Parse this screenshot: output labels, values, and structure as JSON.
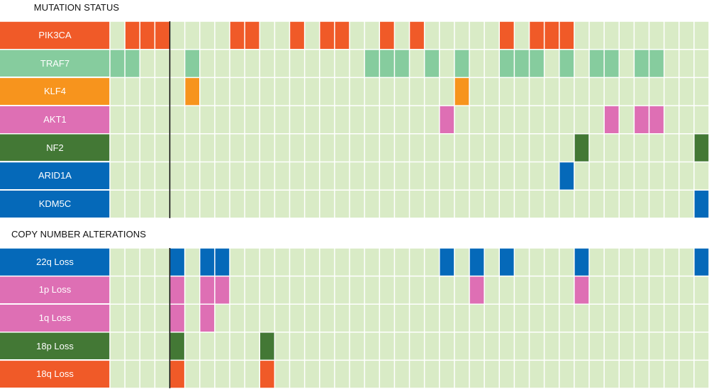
{
  "chart_data": [
    {
      "type": "heatmap",
      "title": "MUTATION STATUS",
      "num_samples": 40,
      "colors": {
        "background": "#d9ebc6",
        "grid": "#ffffff",
        "divider": "#000000"
      },
      "rows": [
        {
          "label": "PIK3CA",
          "color": "#f05a28",
          "text_color": "#ffffff",
          "altered": [
            1,
            2,
            3,
            8,
            9,
            12,
            14,
            15,
            18,
            20,
            26,
            28,
            29,
            30
          ]
        },
        {
          "label": "TRAF7",
          "color": "#86cc9e",
          "text_color": "#ffffff",
          "altered": [
            0,
            1,
            5,
            17,
            18,
            19,
            21,
            23,
            26,
            27,
            28,
            30,
            32,
            33,
            35,
            36
          ]
        },
        {
          "label": "KLF4",
          "color": "#f7941d",
          "text_color": "#ffffff",
          "altered": [
            5,
            23
          ]
        },
        {
          "label": "AKT1",
          "color": "#de6fb4",
          "text_color": "#ffffff",
          "altered": [
            22,
            33,
            35,
            36
          ]
        },
        {
          "label": "NF2",
          "color": "#437835",
          "text_color": "#ffffff",
          "altered": [
            31,
            39
          ]
        },
        {
          "label": "ARID1A",
          "color": "#0569b9",
          "text_color": "#ffffff",
          "altered": [
            30
          ]
        },
        {
          "label": "KDM5C",
          "color": "#0569b9",
          "text_color": "#ffffff",
          "altered": [
            39
          ]
        }
      ]
    },
    {
      "type": "heatmap",
      "title": "COPY NUMBER ALTERATIONS",
      "num_samples": 40,
      "colors": {
        "background": "#d9ebc6",
        "grid": "#ffffff",
        "divider": "#000000"
      },
      "rows": [
        {
          "label": "22q Loss",
          "color": "#0569b9",
          "text_color": "#ffffff",
          "altered": [
            4,
            6,
            7,
            22,
            24,
            26,
            31,
            39
          ]
        },
        {
          "label": "1p Loss",
          "color": "#de6fb4",
          "text_color": "#ffffff",
          "altered": [
            4,
            6,
            7,
            24,
            31
          ]
        },
        {
          "label": "1q Loss",
          "color": "#de6fb4",
          "text_color": "#ffffff",
          "altered": [
            4,
            6
          ]
        },
        {
          "label": "18p Loss",
          "color": "#437835",
          "text_color": "#ffffff",
          "altered": [
            4,
            10
          ]
        },
        {
          "label": "18q Loss",
          "color": "#f05a28",
          "text_color": "#ffffff",
          "altered": [
            4,
            10
          ]
        }
      ]
    }
  ]
}
